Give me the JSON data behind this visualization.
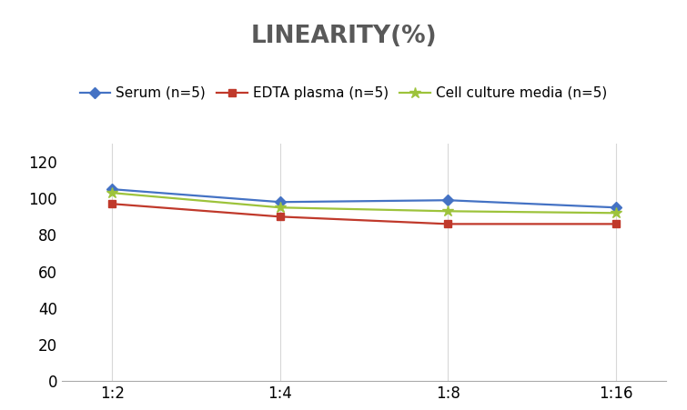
{
  "title": "LINEARITY(%)",
  "x_labels": [
    "1:2",
    "1:4",
    "1:8",
    "1:16"
  ],
  "x_positions": [
    0,
    1,
    2,
    3
  ],
  "series": [
    {
      "name": "Serum (n=5)",
      "values": [
        105,
        98,
        99,
        95
      ],
      "color": "#4472C4",
      "marker": "D",
      "marker_size": 6,
      "linewidth": 1.6
    },
    {
      "name": "EDTA plasma (n=5)",
      "values": [
        97,
        90,
        86,
        86
      ],
      "color": "#C0392B",
      "marker": "s",
      "marker_size": 6,
      "linewidth": 1.6
    },
    {
      "name": "Cell culture media (n=5)",
      "values": [
        103,
        95,
        93,
        92
      ],
      "color": "#9DC33B",
      "marker": "*",
      "marker_size": 9,
      "linewidth": 1.6
    }
  ],
  "ylim": [
    0,
    130
  ],
  "yticks": [
    0,
    20,
    40,
    60,
    80,
    100,
    120
  ],
  "title_fontsize": 19,
  "title_color": "#595959",
  "legend_fontsize": 11,
  "tick_fontsize": 12,
  "background_color": "#ffffff",
  "grid_color": "#d8d8d8"
}
